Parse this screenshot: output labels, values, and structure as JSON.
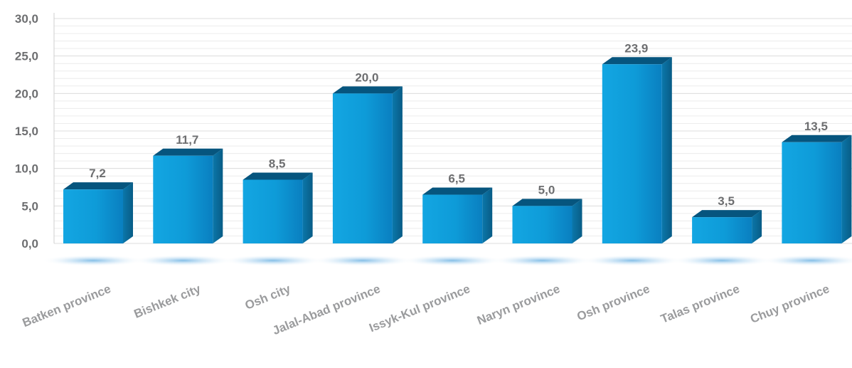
{
  "chart_data": {
    "type": "bar",
    "title": "",
    "xlabel": "",
    "ylabel": "",
    "ylim": [
      0,
      30
    ],
    "yticks": [
      "0,0",
      "5,0",
      "10,0",
      "15,0",
      "20,0",
      "25,0",
      "30,0"
    ],
    "ytick_values": [
      0,
      5,
      10,
      15,
      20,
      25,
      30
    ],
    "grid": true,
    "legend": "none",
    "style": "3d-columns",
    "colors": {
      "bar_front": "#0e9bd8",
      "bar_front_dark": "#0a7fc0",
      "bar_top": "#06557e",
      "bar_side": "#0a6e9c",
      "grid": "#e3e3e3",
      "text": "#6d6e70",
      "category_text": "#9a9b9d"
    },
    "categories": [
      "Batken province",
      "Bishkek city",
      "Osh city",
      "Jalal-Abad province",
      "Issyk-Kul province",
      "Naryn province",
      "Osh province",
      "Talas province",
      "Chuy province"
    ],
    "values": [
      7.2,
      11.7,
      8.5,
      20.0,
      6.5,
      5.0,
      23.9,
      3.5,
      13.5
    ],
    "value_labels": [
      "7,2",
      "11,7",
      "8,5",
      "20,0",
      "6,5",
      "5,0",
      "23,9",
      "3,5",
      "13,5"
    ]
  }
}
